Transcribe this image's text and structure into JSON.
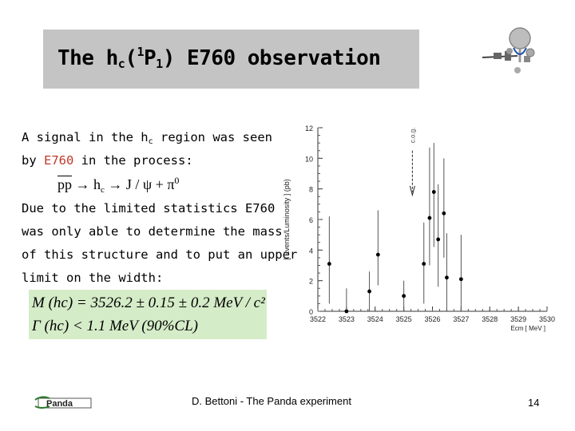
{
  "slide": {
    "title_prefix": "The h",
    "title_sub1": "c",
    "title_mid1": "(",
    "title_sup": "1",
    "title_mid2": "P",
    "title_sub2": "1",
    "title_suffix": ") E760 observation",
    "line1_a": "A signal in the h",
    "line1_sub": "c",
    "line1_b": " region was seen",
    "line2_a": "by ",
    "line2_red": "E760",
    "line2_b": " in the process:",
    "process_pp": "pp",
    "process_hc": "h",
    "process_hc_sub": "c",
    "process_arrow": "→",
    "process_rest": "J / ψ + π",
    "process_sup": "0",
    "para2_line1": "Due to the limited statistics E760",
    "para2_line2": "was only able to determine the mass",
    "para2_line3": "of this structure and to put an upper",
    "para2_line4": "limit on the width:",
    "formula1": "M (hc) = 3526.2 ± 0.15 ± 0.2 MeV / c²",
    "formula2": "Γ (hc) < 1.1 MeV (90%CL)",
    "footer": "D. Bettoni  - The Panda experiment",
    "page_number": "14",
    "logo_text": "Panda"
  },
  "chart_data": {
    "type": "scatter",
    "ylabel": "[ Events/Luminosity ] (pb)",
    "xlabel": "Ecm [ MeV ]",
    "annotation": "c.o.g.",
    "xlim": [
      3522,
      3530
    ],
    "ylim": [
      0,
      12
    ],
    "xticks": [
      "3522",
      "3523",
      "3524",
      "3525",
      "3526",
      "3527",
      "3528",
      "3529",
      "3530"
    ],
    "yticks": [
      "0",
      "2",
      "4",
      "6",
      "8",
      "10",
      "12"
    ],
    "points": [
      {
        "x": 3522.4,
        "y": 3.1,
        "err_low": 2.6,
        "err_high": 3.1
      },
      {
        "x": 3523.0,
        "y": 0.0,
        "err_low": 0.0,
        "err_high": 1.5
      },
      {
        "x": 3523.8,
        "y": 1.3,
        "err_low": 1.3,
        "err_high": 1.3
      },
      {
        "x": 3524.1,
        "y": 3.7,
        "err_low": 2.0,
        "err_high": 2.9
      },
      {
        "x": 3525.0,
        "y": 1.0,
        "err_low": 1.0,
        "err_high": 1.0
      },
      {
        "x": 3525.7,
        "y": 3.1,
        "err_low": 2.6,
        "err_high": 2.7
      },
      {
        "x": 3525.9,
        "y": 6.1,
        "err_low": 3.1,
        "err_high": 4.6
      },
      {
        "x": 3526.05,
        "y": 7.8,
        "err_low": 3.6,
        "err_high": 3.2
      },
      {
        "x": 3526.2,
        "y": 4.7,
        "err_low": 3.1,
        "err_high": 3.6
      },
      {
        "x": 3526.4,
        "y": 6.4,
        "err_low": 2.9,
        "err_high": 3.6
      },
      {
        "x": 3526.5,
        "y": 2.2,
        "err_low": 2.2,
        "err_high": 2.9
      },
      {
        "x": 3527.0,
        "y": 2.1,
        "err_low": 2.1,
        "err_high": 2.9
      }
    ],
    "arrow_x": 3525.3
  }
}
